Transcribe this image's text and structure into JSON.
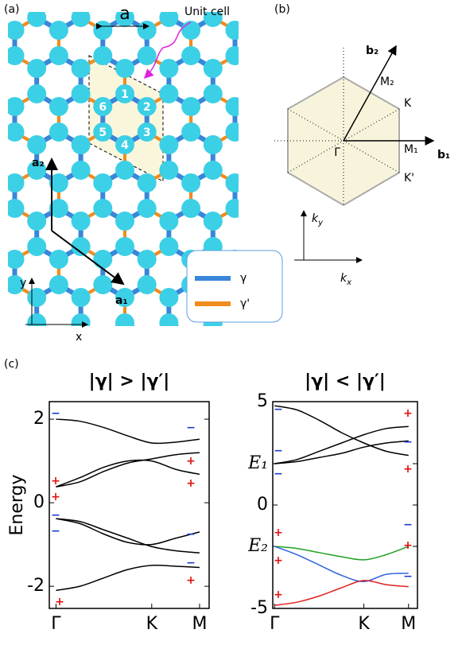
{
  "panel_labels": [
    "(a)",
    "(b)",
    "(c)"
  ],
  "lattice": {
    "lattice_constant": "a",
    "unit_cell_label": "Unit cell",
    "site_labels": [
      "1",
      "2",
      "3",
      "4",
      "5",
      "6"
    ],
    "vector_labels": [
      "a₁",
      "a₂"
    ],
    "axis_labels": [
      "x",
      "y"
    ],
    "legend": [
      {
        "label": "γ",
        "color": "#3a86d8"
      },
      {
        "label": "γ'",
        "color": "#f08c1e"
      }
    ]
  },
  "brillouin_zone": {
    "vector_labels": [
      "b₁",
      "b₂"
    ],
    "points": [
      "Γ",
      "K",
      "K'",
      "M₁",
      "M₂"
    ],
    "axis_labels": [
      {
        "symbol": "k",
        "subscript": "x"
      },
      {
        "symbol": "k",
        "subscript": "y"
      }
    ]
  },
  "chart_data": [
    {
      "type": "line",
      "title": "|γ| > |γ′|",
      "y_label": "Energy",
      "x": [
        0,
        0.25,
        0.5,
        0.75,
        1,
        1.25,
        1.5
      ],
      "xlim": [
        -0.07,
        1.6
      ],
      "xticks": [
        {
          "value": 0,
          "label": "Γ"
        },
        {
          "value": 1,
          "label": "K"
        },
        {
          "value": 1.5,
          "label": "M"
        }
      ],
      "ylim": [
        -2.53,
        2.42
      ],
      "yticks": [
        2,
        0,
        -2
      ],
      "series": [
        {
          "color": "#000000",
          "values": [
            2.0,
            1.95,
            1.8,
            1.6,
            1.43,
            1.45,
            1.52
          ]
        },
        {
          "color": "#000000",
          "values": [
            0.38,
            0.5,
            0.75,
            0.95,
            1.05,
            1.15,
            1.2
          ]
        },
        {
          "color": "#000000",
          "values": [
            0.38,
            0.6,
            0.85,
            1.0,
            1.0,
            0.8,
            0.68
          ]
        },
        {
          "color": "#000000",
          "values": [
            -0.38,
            -0.5,
            -0.75,
            -0.95,
            -1.0,
            -0.85,
            -0.7
          ]
        },
        {
          "color": "#000000",
          "values": [
            -0.38,
            -0.45,
            -0.65,
            -0.85,
            -1.05,
            -1.15,
            -1.2
          ]
        },
        {
          "color": "#000000",
          "values": [
            -2.1,
            -2.0,
            -1.8,
            -1.6,
            -1.5,
            -1.52,
            -1.55
          ]
        }
      ],
      "parity_labels": [
        {
          "text": "−",
          "color": "#1a3ccc"
        },
        {
          "text": "+",
          "color": "#e01010"
        },
        {
          "text": "+",
          "color": "#e01010"
        },
        {
          "text": "−",
          "color": "#1a3ccc"
        },
        {
          "text": "−",
          "color": "#1a3ccc"
        },
        {
          "text": "+",
          "color": "#e01010"
        },
        {
          "text": "−",
          "color": "#1a3ccc"
        },
        {
          "text": "+",
          "color": "#e01010"
        },
        {
          "text": "+",
          "color": "#e01010"
        },
        {
          "text": "−",
          "color": "#1a3ccc"
        },
        {
          "text": "−",
          "color": "#1a3ccc"
        },
        {
          "text": "+",
          "color": "#e01010"
        }
      ]
    },
    {
      "type": "line",
      "title": "|γ| < |γ′|",
      "x": [
        0,
        0.25,
        0.5,
        0.75,
        1,
        1.25,
        1.5
      ],
      "xlim": [
        -0.02,
        1.6
      ],
      "xticks": [
        {
          "value": 0,
          "label": "Γ"
        },
        {
          "value": 1,
          "label": "K"
        },
        {
          "value": 1.5,
          "label": "M"
        }
      ],
      "ylim": [
        -5,
        5
      ],
      "yticks": [
        5,
        {
          "value": 2,
          "label": "E₁"
        },
        0,
        {
          "value": -2,
          "label": "E₂"
        },
        -5
      ],
      "series": [
        {
          "color": "#000000",
          "values": [
            4.8,
            4.6,
            4.1,
            3.5,
            3.0,
            2.6,
            2.4
          ]
        },
        {
          "color": "#000000",
          "values": [
            2.0,
            2.2,
            2.6,
            3.0,
            3.4,
            3.7,
            3.8
          ]
        },
        {
          "color": "#000000",
          "values": [
            2.0,
            2.1,
            2.3,
            2.5,
            2.8,
            3.0,
            3.1
          ]
        },
        {
          "color": "#22a022",
          "values": [
            -2.0,
            -2.1,
            -2.3,
            -2.5,
            -2.65,
            -2.4,
            -2.0
          ]
        },
        {
          "color": "#3060e0",
          "values": [
            -2.0,
            -2.4,
            -2.9,
            -3.4,
            -3.7,
            -3.35,
            -3.3
          ]
        },
        {
          "color": "#e02020",
          "values": [
            -4.85,
            -4.7,
            -4.4,
            -4.0,
            -3.65,
            -3.85,
            -3.95
          ]
        }
      ],
      "parity_labels": [
        {
          "text": "−",
          "color": "#1a3ccc"
        },
        {
          "text": "−",
          "color": "#1a3ccc"
        },
        {
          "text": "−",
          "color": "#1a3ccc"
        },
        {
          "text": "+",
          "color": "#e01010"
        },
        {
          "text": "+",
          "color": "#e01010"
        },
        {
          "text": "+",
          "color": "#e01010"
        },
        {
          "text": "+",
          "color": "#e01010"
        },
        {
          "text": "−",
          "color": "#1a3ccc"
        },
        {
          "text": "+",
          "color": "#e01010"
        },
        {
          "text": "−",
          "color": "#1a3ccc"
        },
        {
          "text": "+",
          "color": "#e01010"
        },
        {
          "text": "−",
          "color": "#1a3ccc"
        }
      ]
    }
  ]
}
